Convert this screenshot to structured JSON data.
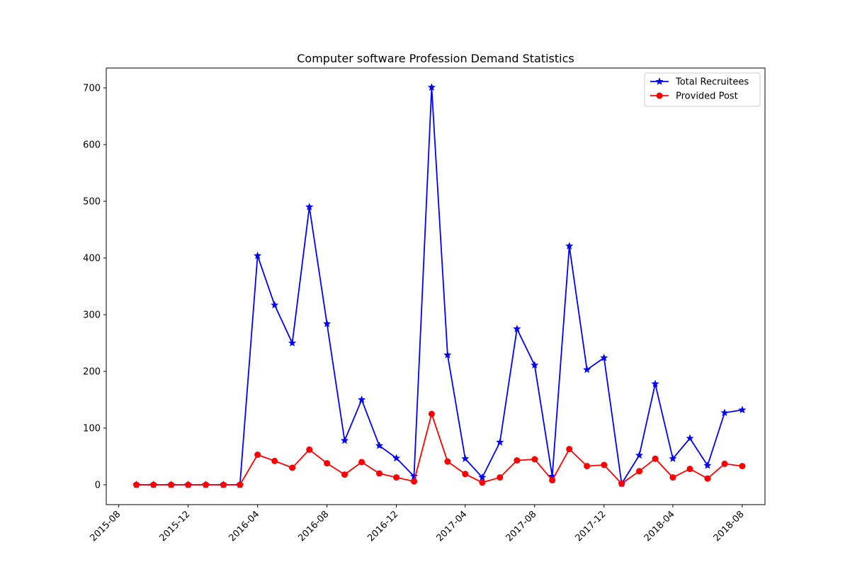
{
  "chart_data": {
    "type": "line",
    "title": "Computer software  Profession Demand Statistics",
    "xlabel": "",
    "ylabel": "",
    "x_tick_labels": [
      "2015-08",
      "2015-12",
      "2016-04",
      "2016-08",
      "2016-12",
      "2017-04",
      "2017-08",
      "2017-12",
      "2018-04",
      "2018-08"
    ],
    "y_ticks": [
      0,
      100,
      200,
      300,
      400,
      500,
      600,
      700
    ],
    "ylim": [
      -35,
      735
    ],
    "xlim": [
      "2015-07-10",
      "2018-09-10"
    ],
    "grid": false,
    "legend_position": "top-right",
    "x": [
      "2015-09",
      "2015-10",
      "2015-11",
      "2015-12",
      "2016-01",
      "2016-02",
      "2016-03",
      "2016-04",
      "2016-05",
      "2016-06",
      "2016-07",
      "2016-08",
      "2016-09",
      "2016-10",
      "2016-11",
      "2016-12",
      "2017-01",
      "2017-02",
      "2017-03",
      "2017-04",
      "2017-05",
      "2017-06",
      "2017-07",
      "2017-08",
      "2017-09",
      "2017-10",
      "2017-11",
      "2017-12",
      "2018-01",
      "2018-02",
      "2018-03",
      "2018-04",
      "2018-05",
      "2018-06",
      "2018-07",
      "2018-08"
    ],
    "series": [
      {
        "name": "Total Recruitees",
        "color": "#0000ff",
        "marker": "star",
        "values": [
          0,
          0,
          0,
          0,
          0,
          0,
          0,
          404,
          317,
          250,
          490,
          284,
          78,
          150,
          69,
          47,
          15,
          701,
          229,
          46,
          13,
          75,
          275,
          211,
          15,
          421,
          203,
          224,
          2,
          52,
          178,
          46,
          82,
          34,
          127,
          132
        ]
      },
      {
        "name": "Provided Post",
        "color": "#ff0000",
        "marker": "circle",
        "values": [
          0,
          0,
          0,
          0,
          0,
          0,
          0,
          53,
          42,
          30,
          62,
          38,
          18,
          40,
          20,
          13,
          6,
          125,
          41,
          19,
          4,
          13,
          43,
          45,
          8,
          63,
          33,
          35,
          2,
          24,
          46,
          13,
          28,
          11,
          37,
          33
        ]
      }
    ]
  }
}
